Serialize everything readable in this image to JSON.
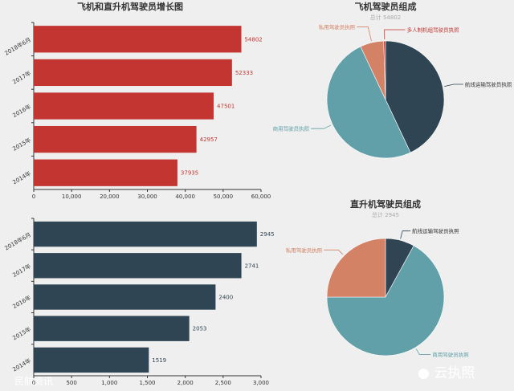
{
  "colors": {
    "airplane_bar": "#c23531",
    "heli_bar": "#2f4554",
    "slice_airline": "#2f4554",
    "slice_commercial": "#61a0a8",
    "slice_private": "#d48265",
    "slice_multi": "#c23531"
  },
  "chart_data": [
    {
      "type": "bar",
      "orientation": "horizontal",
      "title": "飞机和直升机驾驶员增长图",
      "categories": [
        "2018年6月",
        "2017年",
        "2016年",
        "2015年",
        "2014年"
      ],
      "values": [
        54802,
        52333,
        47501,
        42957,
        37935
      ],
      "value_labels": [
        "54802",
        "52333",
        "47501",
        "42957",
        "37935"
      ],
      "xlim": [
        0,
        60000
      ],
      "xticks": [
        0,
        10000,
        20000,
        30000,
        40000,
        50000,
        60000
      ],
      "xtick_labels": [
        "0",
        "10,000",
        "20,000",
        "30,000",
        "40,000",
        "50,000",
        "60,000"
      ],
      "grid": false
    },
    {
      "type": "pie",
      "title": "飞机驾驶员组成",
      "subtitle": "总计 54802",
      "slices": [
        {
          "label": "航线运输驾驶员执照",
          "value": 43
        },
        {
          "label": "商用驾驶员执照",
          "value": 50
        },
        {
          "label": "私用驾驶员执照",
          "value": 6.5
        },
        {
          "label": "多人制机组驾驶员执照",
          "value": 0.5
        }
      ]
    },
    {
      "type": "bar",
      "orientation": "horizontal",
      "title": "",
      "categories": [
        "2018年6月",
        "2017年",
        "2016年",
        "2015年",
        "2014年"
      ],
      "values": [
        2945,
        2741,
        2400,
        2053,
        1519
      ],
      "value_labels": [
        "2945",
        "2741",
        "2400",
        "2053",
        "1519"
      ],
      "xlim": [
        0,
        3000
      ],
      "xticks": [
        0,
        500,
        1000,
        1500,
        2000,
        2500,
        3000
      ],
      "xtick_labels": [
        "0",
        "500",
        "1,000",
        "1,500",
        "2,000",
        "2,500",
        "3,000"
      ],
      "grid": false
    },
    {
      "type": "pie",
      "title": "直升机驾驶员组成",
      "subtitle": "总计 2945",
      "slices": [
        {
          "label": "航线运输驾驶员执照",
          "value": 8
        },
        {
          "label": "商用驾驶员执照",
          "value": 67
        },
        {
          "label": "私用驾驶员执照",
          "value": 25
        }
      ]
    }
  ],
  "watermarks": {
    "left": "民航资讯",
    "right": "云执照"
  }
}
